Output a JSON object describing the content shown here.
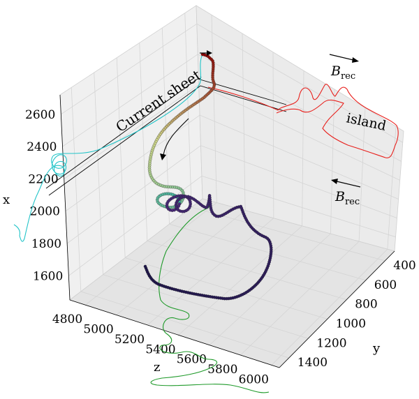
{
  "chart_data": {
    "type": "scatter",
    "projection": "3d",
    "axes": {
      "x": {
        "label": "x",
        "ticks": [
          1600,
          1800,
          2000,
          2200,
          2400,
          2600
        ],
        "lim": [
          1450,
          2720
        ]
      },
      "y": {
        "label": "y",
        "ticks": [
          400,
          600,
          800,
          1000,
          1200,
          1400
        ],
        "lim": [
          300,
          1500
        ]
      },
      "z": {
        "label": "z",
        "ticks": [
          4800,
          5000,
          5200,
          5400,
          5600,
          5800,
          6000
        ],
        "lim": [
          4700,
          6050
        ]
      }
    },
    "grid": true,
    "annotations": [
      {
        "text": "Current sheet",
        "kind": "label"
      },
      {
        "text": "island",
        "kind": "label"
      },
      {
        "text": "B",
        "sub": "rec",
        "kind": "field",
        "direction": "right"
      },
      {
        "text": "B",
        "sub": "rec",
        "kind": "field",
        "direction": "left"
      }
    ],
    "colors": {
      "trajectory_start": "#8b0000",
      "trajectory_mid": "#cfd68a",
      "trajectory_end": "#1d1548",
      "projection_x_plane": "#22c4c8",
      "projection_z_plane": "#1f9a2a",
      "island_curve": "#e8201c",
      "pane": "#efefef",
      "grid": "#d8d8d8"
    }
  }
}
